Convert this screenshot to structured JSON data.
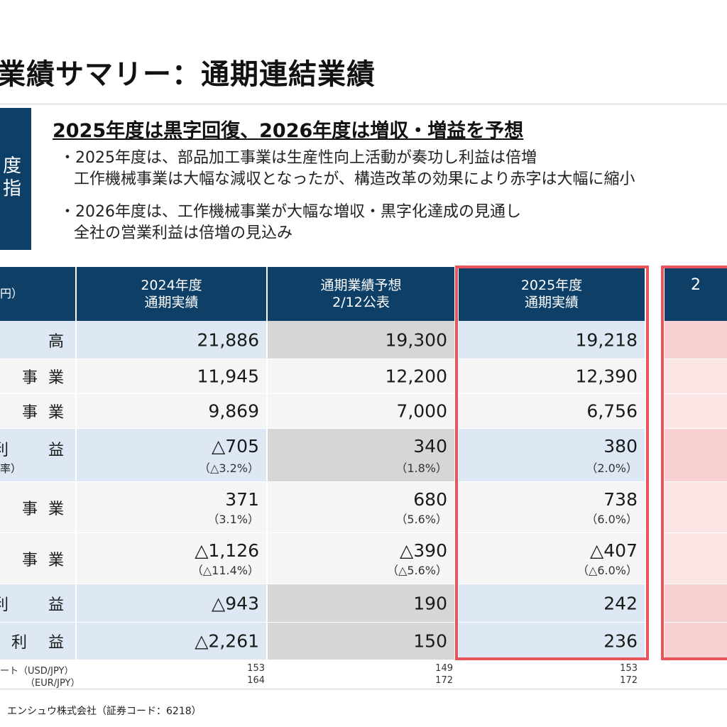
{
  "title": "業績サマリー：通期連結業績",
  "side_label": [
    "度",
    "指"
  ],
  "headline": "2025年度は黒字回復、2026年度は増収・増益を予想",
  "bullets": [
    {
      "line1": "・2025年度は、部品加工事業は生産性向上活動が奏功し利益は倍増",
      "line2": "工作機械事業は大幅な減収となったが、構造改革の効果により赤字は大幅に縮小"
    },
    {
      "line1": "・2026年度は、工作機械事業が大幅な増収・黒字化達成の見通し",
      "line2": "全社の営業利益は倍増の見込み"
    }
  ],
  "table": {
    "unit_label": "円）",
    "headers": {
      "fy2024": {
        "line1": "2024年度",
        "line2": "通期実績"
      },
      "forecast": {
        "line1": "通期業績予想",
        "line2": "2/12公表"
      },
      "fy2025": {
        "line1": "2025年度",
        "line2": "通期実績"
      },
      "fy2026": {
        "line1": "2"
      }
    },
    "rows": [
      {
        "label": "高",
        "sub": "",
        "fy2024": "21,886",
        "fy2024_pct": "",
        "forecast": "19,300",
        "forecast_pct": "",
        "fy2025": "19,218",
        "fy2025_pct": ""
      },
      {
        "label": "事 業",
        "sub": "",
        "fy2024": "11,945",
        "fy2024_pct": "",
        "forecast": "12,200",
        "forecast_pct": "",
        "fy2025": "12,390",
        "fy2025_pct": ""
      },
      {
        "label": "事 業",
        "sub": "",
        "fy2024": "9,869",
        "fy2024_pct": "",
        "forecast": "7,000",
        "forecast_pct": "",
        "fy2025": "6,756",
        "fy2025_pct": ""
      },
      {
        "label": "利　　益",
        "sub": "率）",
        "fy2024": "△705",
        "fy2024_pct": "（△3.2%）",
        "forecast": "340",
        "forecast_pct": "（1.8%）",
        "fy2025": "380",
        "fy2025_pct": "（2.0%）"
      },
      {
        "label": "事 業",
        "sub": "",
        "fy2024": "371",
        "fy2024_pct": "（3.1%）",
        "forecast": "680",
        "forecast_pct": "（5.6%）",
        "fy2025": "738",
        "fy2025_pct": "（6.0%）"
      },
      {
        "label": "事 業",
        "sub": "",
        "fy2024": "△1,126",
        "fy2024_pct": "（△11.4%）",
        "forecast": "△390",
        "forecast_pct": "（△5.6%）",
        "fy2025": "△407",
        "fy2025_pct": "（△6.0%）"
      },
      {
        "label": "利　　益",
        "sub": "",
        "fy2024": "△943",
        "fy2024_pct": "",
        "forecast": "190",
        "forecast_pct": "",
        "fy2025": "242",
        "fy2025_pct": ""
      },
      {
        "label": "利　益",
        "sub": "",
        "fy2024": "△2,261",
        "fy2024_pct": "",
        "forecast": "150",
        "forecast_pct": "",
        "fy2025": "236",
        "fy2025_pct": ""
      }
    ],
    "fx": [
      {
        "label": "ート（USD/JPY）",
        "fy2024": "153",
        "forecast": "149",
        "fy2025": "153"
      },
      {
        "label": "（EUR/JPY）",
        "fy2024": "164",
        "forecast": "172",
        "fy2025": "172"
      }
    ]
  },
  "footer": "エンシュウ株式会社（証券コード：6218）",
  "colors": {
    "header_bg": "#0e3f66",
    "highlight_border": "#e8555a",
    "row_blue": "#dde8f4",
    "row_forecast_gray": "#d6d6d6",
    "row_2026_pink": "#f8d2d2"
  }
}
